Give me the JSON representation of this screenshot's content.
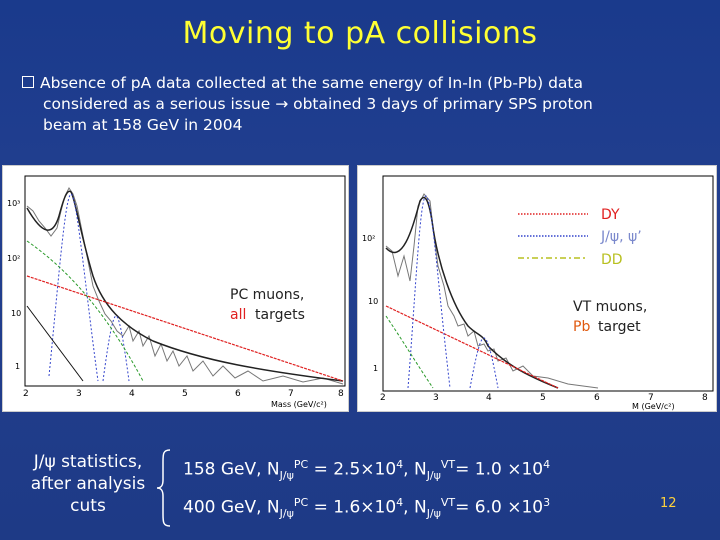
{
  "slide": {
    "title": "Moving to pA collisions",
    "bullet_line1": "Absence of pA data collected at the same energy of In-In (Pb-Pb) data",
    "bullet_line2": "considered as a serious issue → obtained 3 days of primary SPS proton",
    "bullet_line3": "beam at 158 GeV in 2004",
    "page_number": "12"
  },
  "left_plot": {
    "x_ticks": [
      "2",
      "3",
      "4",
      "5",
      "6",
      "7",
      "8"
    ],
    "y_ticks": [
      "10³",
      "10²",
      "10",
      "1"
    ],
    "x_axis_label": "Mass (GeV/c²)",
    "label_line1": "PC muons,",
    "label_all": "all",
    "label_targets": "targets"
  },
  "right_plot": {
    "x_ticks": [
      "2",
      "3",
      "4",
      "5",
      "6",
      "7",
      "8"
    ],
    "y_ticks": [
      "10²",
      "10",
      "1"
    ],
    "x_axis_label": "M (GeV/c²)",
    "legend": {
      "dy": "DY",
      "jpsi": "J/ψ, ψ’",
      "dd": "DD"
    },
    "label_line1": "VT muons,",
    "label_pb": "Pb",
    "label_target": "target"
  },
  "stats": {
    "label_line1": "J/ψ statistics,",
    "label_line2": "after analysis",
    "label_line3": "cuts",
    "row1_energy": "158 GeV, N",
    "row1_sub1": "J/ψ",
    "row1_sup1": "PC",
    "row1_val1": " = 2.5×10",
    "row1_exp1": "4",
    "row1_mid": ", N",
    "row1_sub2": "J/ψ",
    "row1_sup2": "VT",
    "row1_val2": "= 1.0 ×10",
    "row1_exp2": "4",
    "row2_energy": "400 GeV, N",
    "row2_sub1": "J/ψ",
    "row2_sup1": "PC",
    "row2_val1": " = 1.6×10",
    "row2_exp1": "4",
    "row2_mid": ", N",
    "row2_sub2": "J/ψ",
    "row2_sup2": "VT",
    "row2_val2": "= 6.0 ×10",
    "row2_exp2": "3"
  },
  "colors": {
    "title": "#ffff33",
    "background": "#1e3a8a",
    "highlight_red": "#ff3b3b",
    "page_number": "#ffd23c"
  }
}
